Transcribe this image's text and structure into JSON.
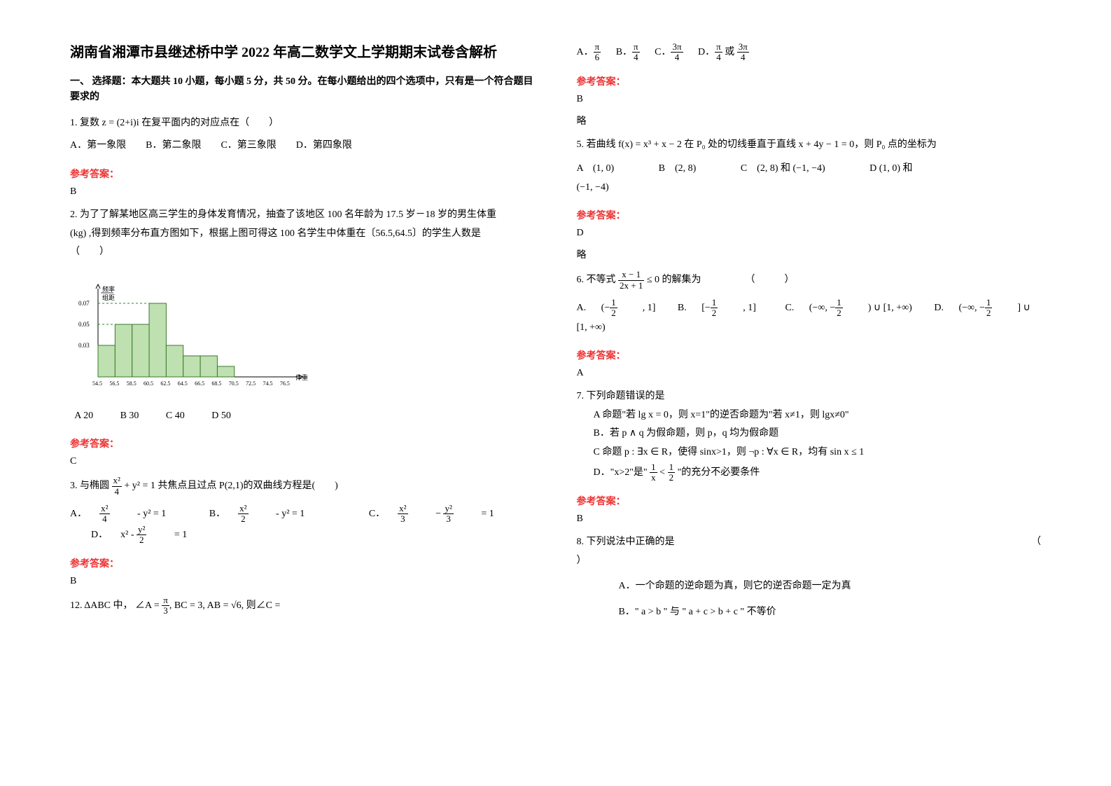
{
  "title": "湖南省湘潭市县继述桥中学 2022 年高二数学文上学期期末试卷含解析",
  "section1_header": "一、 选择题：本大题共 10 小题，每小题 5 分，共 50 分。在每小题给出的四个选项中，只有是一个符合题目要求的",
  "q1": {
    "text": "1. 复数 z = (2+i)i 在复平面内的对应点在（　　）",
    "options": "A．第一象限　　B．第二象限　　C．第三象限　　D．第四象限"
  },
  "answer_label": "参考答案：",
  "q1_answer": "B",
  "q2": {
    "text1": "2. 为了了解某地区高三学生的身体发育情况，抽查了该地区 100 名年龄为 17.5 岁－18 岁的男生体重",
    "text2": "(kg) ,得到频率分布直方图如下，根据上图可得这 100 名学生中体重在〔56.5,64.5〕的学生人数是",
    "text3": "（　　）",
    "options": "  A 20           B 30           C 40           D 50"
  },
  "q2_answer": "C",
  "histogram": {
    "ylabel_top": "频率",
    "ylabel_bottom": "组距",
    "xlabel": "体重(kg)",
    "yticks": [
      "0.03",
      "0.05",
      "0.07"
    ],
    "xticks": [
      "54.5",
      "56.5",
      "58.5",
      "60.5",
      "62.5",
      "64.5",
      "66.5",
      "68.5",
      "70.5",
      "72.5",
      "74.5",
      "76.5"
    ],
    "bars": [
      0.03,
      0.05,
      0.05,
      0.07,
      0.03,
      0.02,
      0.02,
      0.01
    ],
    "bar_offset": 0,
    "axis_color": "#000000",
    "bar_fill": "#bfe0b0",
    "bar_stroke": "#3a7a2a",
    "dash_color": "#2b882b"
  },
  "q3": {
    "text_pre": "3. 与椭圆 ",
    "text_post": " 共焦点且过点 P(2,1)的双曲线方程是(　　)",
    "opt_a_pre": "A．",
    "opt_b_pre": "B．",
    "opt_c_pre": "C．",
    "opt_d_pre": "D．"
  },
  "q3_answer": "B",
  "q12": {
    "text_pre": "12. ΔABC 中，",
    "text_post": " ="
  },
  "right": {
    "q12_options": {
      "a": "A．",
      "b": "B．",
      "c": "C．",
      "d": "D．",
      "d_post": " 或 "
    },
    "q12_answer": "B",
    "q12_note": "略",
    "q5": {
      "text_pre": "5. 若曲线 f(x) = x³ + x − 2 在 P₀ 处的切线垂直于直线 x + 4y − 1 = 0，则 P₀ 点的坐标为",
      "a": "A　(1, 0)",
      "b": "B　(2, 8)",
      "c": "C　(2, 8) 和 (−1, −4)",
      "d": "D (1, 0) 和",
      "d2": "(−1, −4)"
    },
    "q5_answer": "D",
    "q5_note": "略",
    "q6": {
      "text_pre": "6. 不等式 ",
      "text_post": " 的解集为　　　　　（　　　）",
      "a": "A.",
      "b": "B.",
      "c": "C.",
      "d": "D."
    },
    "q6_answer": "A",
    "q7": {
      "text": "7. 下列命题错误的是",
      "a": "A 命题\"若 lg x = 0，则 x=1\"的逆否命题为\"若 x≠1，则 lgx≠0\"",
      "b": "B．若 p ∧ q 为假命题，则 p，q 均为假命题",
      "c": "C 命题 p : ∃x ∈ R，使得 sinx>1，则 ¬p : ∀x ∈ R，均有 sin x ≤ 1",
      "d_pre": "D．\"x>2\"是\" ",
      "d_post": " \"的充分不必要条件"
    },
    "q7_answer": "B",
    "q8": {
      "text": "8. 下列说法中正确的是",
      "paren": "（　　　）",
      "a": "A．一个命题的逆命题为真，则它的逆否命题一定为真",
      "b": "B．\" a > b \" 与 \" a + c > b + c \" 不等价"
    }
  }
}
